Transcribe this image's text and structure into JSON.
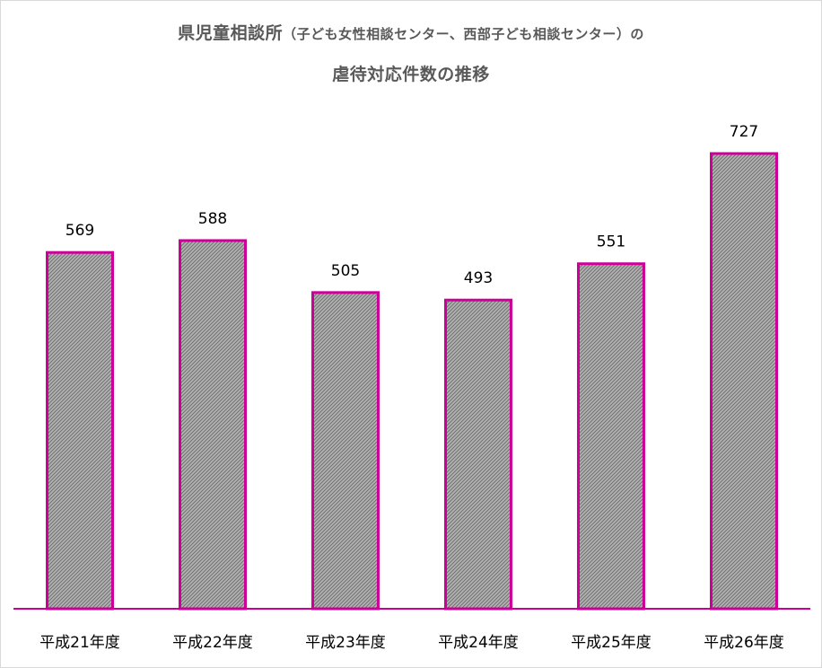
{
  "chart_data": {
    "type": "bar",
    "title_main": "県児童相談所",
    "title_paren": "（子ども女性相談センター、西部子ども相談センター）の",
    "title_line2": "虐待対応件数の推移",
    "categories": [
      "平成21年度",
      "平成22年度",
      "平成23年度",
      "平成24年度",
      "平成25年度",
      "平成26年度"
    ],
    "values": [
      569,
      588,
      505,
      493,
      551,
      727
    ],
    "data_labels": [
      "569",
      "588",
      "505",
      "493",
      "551",
      "727"
    ],
    "xlabel": "",
    "ylabel": "",
    "ylim": [
      0,
      727
    ],
    "grid": false,
    "legend": "none",
    "bar_stroke_color": "#cc0099",
    "bar_fill_color": "#a6a6a6",
    "axis_color": "#cc0099"
  }
}
